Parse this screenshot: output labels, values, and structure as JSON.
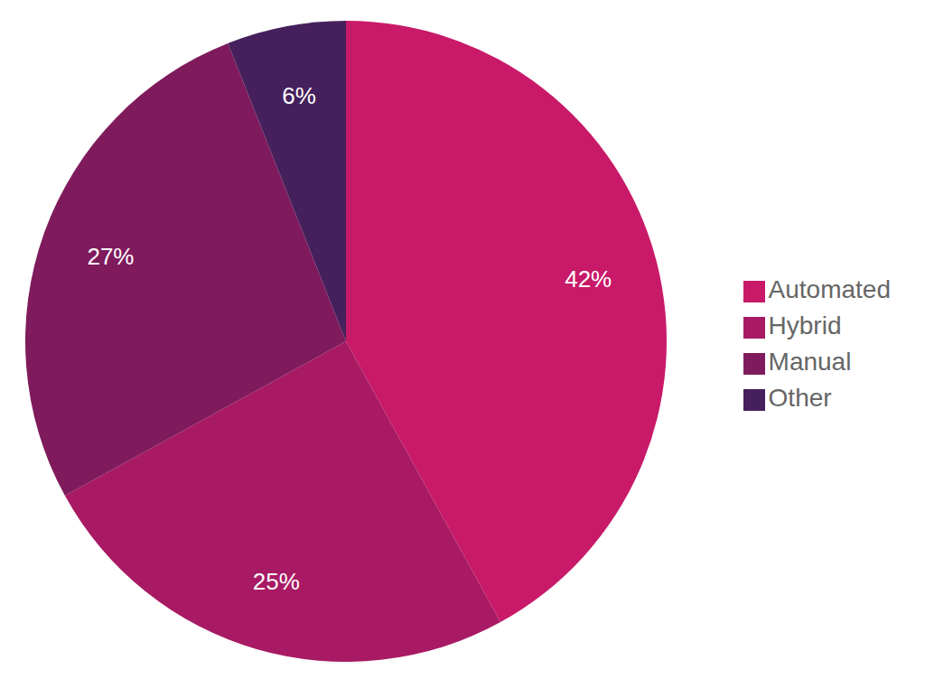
{
  "chart_data": {
    "type": "pie",
    "categories": [
      "Automated",
      "Hybrid",
      "Manual",
      "Other"
    ],
    "values": [
      42,
      25,
      27,
      6
    ],
    "value_labels": [
      "42%",
      "25%",
      "27%",
      "6%"
    ],
    "colors": [
      "#c81a69",
      "#a81a63",
      "#7f1b5d",
      "#46205c"
    ],
    "legend": "right",
    "data_labels": true
  }
}
